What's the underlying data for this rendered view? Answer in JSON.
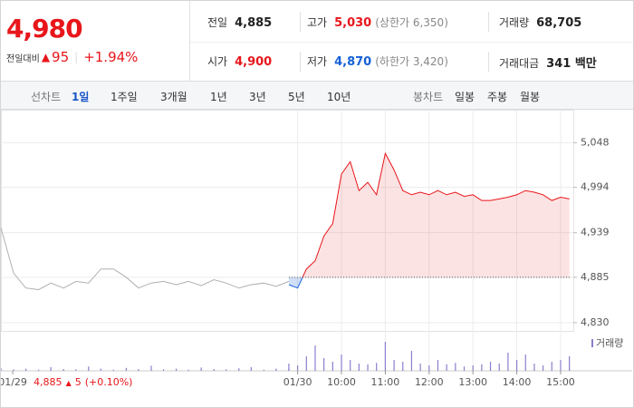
{
  "header": {
    "price": "4,980",
    "change_label": "전일대비",
    "change": "95",
    "change_pct": "+1.94%"
  },
  "stats": [
    {
      "label": "전일",
      "value": "4,885"
    },
    {
      "label": "고가",
      "value": "5,030",
      "note": "(상한가 6,350)"
    },
    {
      "label": "거래량",
      "value": "68,705"
    },
    {
      "label": "시가",
      "value": "4,900"
    },
    {
      "label": "저가",
      "value": "4,870",
      "note": "(하한가 3,420)"
    },
    {
      "label": "거래대금",
      "value": "341 백만"
    }
  ],
  "tabs": {
    "line_label": "선차트",
    "periods": [
      "1일",
      "1주일",
      "3개월",
      "1년",
      "3년",
      "5년",
      "10년"
    ],
    "active": 0,
    "candle_label": "봉차트",
    "candles": [
      "일봉",
      "주봉",
      "월봉"
    ]
  },
  "footer": {
    "prev_close": "4,885",
    "prev_change": "5",
    "prev_pct": "(+0.10%)"
  },
  "chart_data": {
    "type": "line",
    "ylim": [
      4820,
      5088
    ],
    "yticks": [
      {
        "value": 5048,
        "label": "5,048"
      },
      {
        "value": 4994,
        "label": "4,994"
      },
      {
        "value": 4939,
        "label": "4,939"
      },
      {
        "value": 4885,
        "label": "4,885"
      },
      {
        "value": 4830,
        "label": "4,830"
      }
    ],
    "xlim": [
      -6.77,
      6.29
    ],
    "xticks": [
      {
        "value": -6.5,
        "label": "01/29"
      },
      {
        "value": 0,
        "label": "01/30"
      },
      {
        "value": 1,
        "label": "10:00"
      },
      {
        "value": 2,
        "label": "11:00"
      },
      {
        "value": 3,
        "label": "12:00"
      },
      {
        "value": 4,
        "label": "13:00"
      },
      {
        "value": 5,
        "label": "14:00"
      },
      {
        "value": 6,
        "label": "15:00"
      }
    ],
    "grid": true,
    "baseline": 4885,
    "series": [
      {
        "color": "#b0b0b0",
        "x": [
          -6.77,
          -6.48,
          -6.2,
          -5.91,
          -5.63,
          -5.34,
          -5.06,
          -4.77,
          -4.49,
          -4.2,
          -3.91,
          -3.63,
          -3.34,
          -3.06,
          -2.77,
          -2.49,
          -2.2,
          -1.91,
          -1.63,
          -1.34,
          -1.06,
          -0.77,
          -0.49,
          -0.2
        ],
        "values": [
          4945,
          4890,
          4872,
          4870,
          4878,
          4872,
          4880,
          4878,
          4895,
          4895,
          4885,
          4872,
          4878,
          4880,
          4876,
          4880,
          4875,
          4882,
          4878,
          4872,
          4876,
          4878,
          4874,
          4880
        ]
      },
      {
        "color": "#e8161b",
        "below_color": "#1561d8",
        "x": [
          -0.2,
          0,
          0.2,
          0.4,
          0.6,
          0.8,
          1,
          1.2,
          1.4,
          1.6,
          1.8,
          2,
          2.2,
          2.4,
          2.6,
          2.8,
          3,
          3.2,
          3.4,
          3.6,
          3.8,
          4,
          4.2,
          4.4,
          4.6,
          4.8,
          5,
          5.2,
          5.4,
          5.6,
          5.8,
          6,
          6.2
        ],
        "values": [
          4876,
          4872,
          4895,
          4905,
          4935,
          4950,
          5010,
          5025,
          4990,
          5000,
          4985,
          5035,
          5015,
          4990,
          4985,
          4988,
          4985,
          4990,
          4985,
          4988,
          4983,
          4985,
          4978,
          4978,
          4980,
          4982,
          4985,
          4990,
          4988,
          4985,
          4978,
          4982,
          4980
        ]
      }
    ],
    "volume": {
      "name": "거래량",
      "color": "#8b7fd0",
      "ylim": [
        0,
        100
      ],
      "series": [
        {
          "x": [
            -6.77,
            -6.48,
            -6.2,
            -5.91,
            -5.63,
            -5.34,
            -5.06,
            -4.77,
            -4.49,
            -4.2,
            -3.91,
            -3.63,
            -3.34,
            -3.06,
            -2.77,
            -2.49,
            -2.2,
            -1.91,
            -1.63,
            -1.34,
            -1.06,
            -0.77,
            -0.49,
            -0.2
          ],
          "values": [
            8,
            4,
            6,
            3,
            10,
            5,
            4,
            12,
            6,
            3,
            8,
            5,
            14,
            4,
            6,
            3,
            9,
            5,
            4,
            7,
            10,
            3,
            6,
            8
          ]
        },
        {
          "x": [
            -0.2,
            0,
            0.2,
            0.4,
            0.6,
            0.8,
            1,
            1.2,
            1.4,
            1.6,
            1.8,
            2,
            2.2,
            2.4,
            2.6,
            2.8,
            3,
            3.2,
            3.4,
            3.6,
            3.8,
            4,
            4.2,
            4.4,
            4.6,
            4.8,
            5,
            5.2,
            5.4,
            5.6,
            5.8,
            6,
            6.2
          ],
          "values": [
            20,
            15,
            40,
            70,
            35,
            25,
            45,
            30,
            20,
            18,
            22,
            80,
            30,
            25,
            55,
            20,
            15,
            30,
            18,
            22,
            12,
            15,
            18,
            25,
            20,
            50,
            30,
            45,
            20,
            15,
            25,
            30,
            40
          ]
        }
      ]
    }
  }
}
